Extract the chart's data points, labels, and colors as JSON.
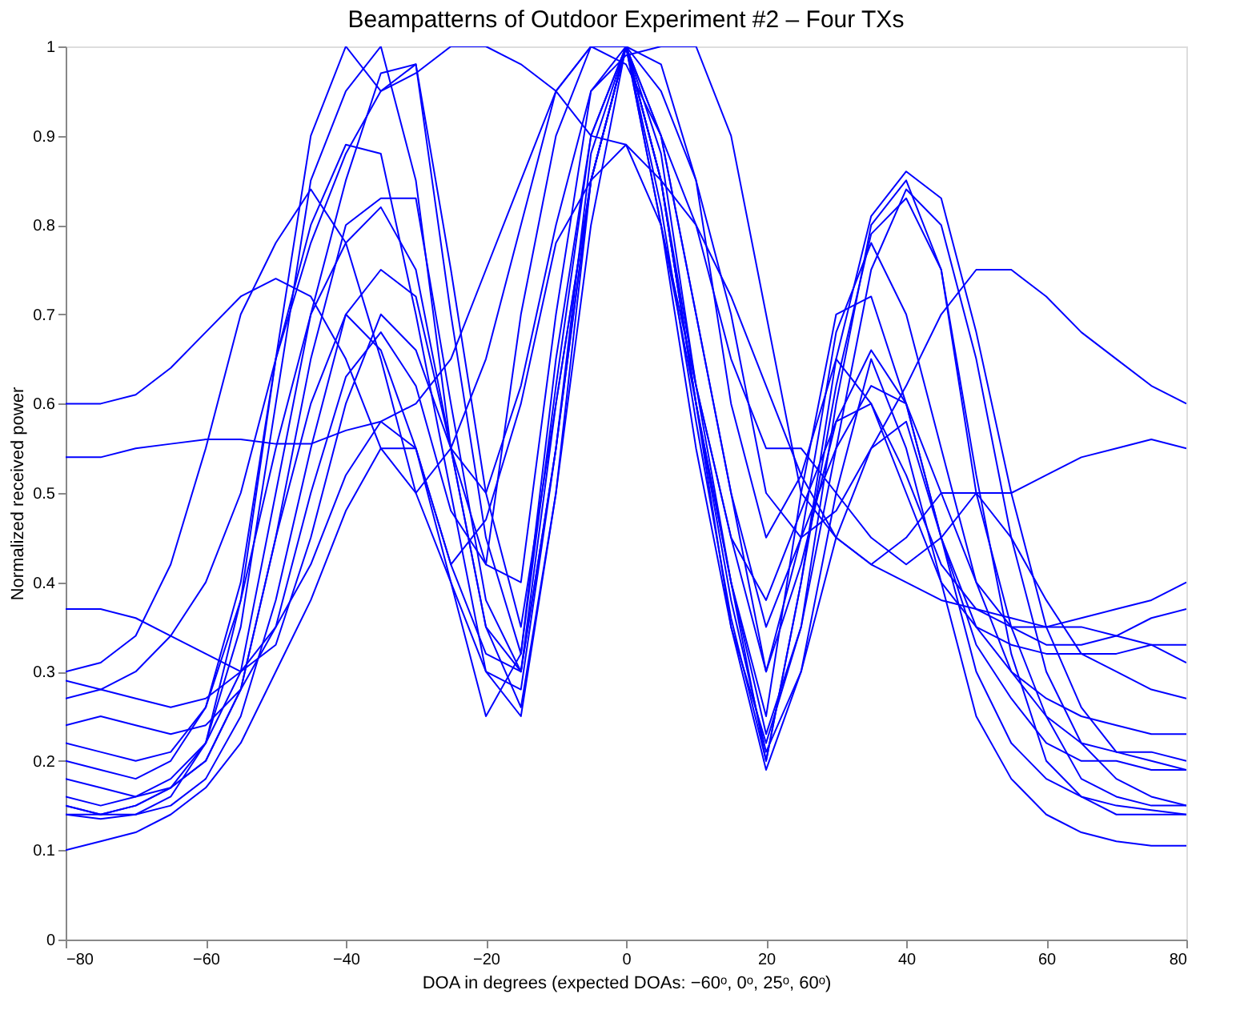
{
  "chart_data": {
    "type": "line",
    "title": "Beampatterns of Outdoor Experiment #2 – Four TXs",
    "xlabel": "DOA in degrees (expected DOAs: −60ᵒ, 0ᵒ, 25ᵒ, 60ᵒ)",
    "ylabel": "Normalized received power",
    "x": [
      -80,
      -75,
      -70,
      -65,
      -60,
      -55,
      -50,
      -45,
      -40,
      -35,
      -30,
      -25,
      -20,
      -15,
      -10,
      -5,
      0,
      5,
      10,
      15,
      20,
      25,
      30,
      35,
      40,
      45,
      50,
      55,
      60,
      65,
      70,
      75,
      80
    ],
    "xlim": [
      -80,
      80
    ],
    "xticks": [
      -80,
      -60,
      -40,
      -20,
      0,
      20,
      40,
      60,
      80
    ],
    "ylim": [
      0,
      1
    ],
    "yticks": [
      0,
      0.1,
      0.2,
      0.3,
      0.4,
      0.5,
      0.6,
      0.7,
      0.8,
      0.9,
      1
    ],
    "grid": false,
    "legend": false,
    "series": [
      {
        "color": "#0000ff",
        "values": [
          0.15,
          0.14,
          0.15,
          0.17,
          0.22,
          0.35,
          0.6,
          0.85,
          0.95,
          1.0,
          0.85,
          0.55,
          0.35,
          0.3,
          0.6,
          0.85,
          1.0,
          0.8,
          0.55,
          0.35,
          0.22,
          0.35,
          0.6,
          0.8,
          0.85,
          0.75,
          0.5,
          0.35,
          0.25,
          0.18,
          0.16,
          0.15,
          0.15
        ]
      },
      {
        "color": "#0000ff",
        "values": [
          0.6,
          0.6,
          0.61,
          0.64,
          0.68,
          0.72,
          0.74,
          0.72,
          0.65,
          0.55,
          0.5,
          0.55,
          0.65,
          0.8,
          0.95,
          1.0,
          1.0,
          0.95,
          0.85,
          0.7,
          0.5,
          0.45,
          0.48,
          0.55,
          0.62,
          0.7,
          0.75,
          0.75,
          0.72,
          0.68,
          0.65,
          0.62,
          0.6
        ]
      },
      {
        "color": "#0000ff",
        "values": [
          0.54,
          0.54,
          0.55,
          0.555,
          0.56,
          0.56,
          0.555,
          0.555,
          0.57,
          0.58,
          0.6,
          0.65,
          0.75,
          0.85,
          0.95,
          1.0,
          0.98,
          0.9,
          0.8,
          0.65,
          0.55,
          0.55,
          0.5,
          0.45,
          0.42,
          0.45,
          0.5,
          0.5,
          0.52,
          0.54,
          0.55,
          0.56,
          0.55
        ]
      },
      {
        "color": "#0000ff",
        "values": [
          0.37,
          0.37,
          0.36,
          0.34,
          0.32,
          0.3,
          0.33,
          0.45,
          0.6,
          0.7,
          0.66,
          0.55,
          0.42,
          0.4,
          0.7,
          0.95,
          1.0,
          0.9,
          0.7,
          0.5,
          0.35,
          0.45,
          0.55,
          0.62,
          0.6,
          0.5,
          0.4,
          0.35,
          0.33,
          0.33,
          0.34,
          0.36,
          0.37
        ]
      },
      {
        "color": "#0000ff",
        "values": [
          0.1,
          0.11,
          0.12,
          0.14,
          0.17,
          0.22,
          0.3,
          0.38,
          0.48,
          0.55,
          0.55,
          0.4,
          0.25,
          0.32,
          0.65,
          0.9,
          1.0,
          0.85,
          0.6,
          0.35,
          0.19,
          0.3,
          0.5,
          0.65,
          0.55,
          0.4,
          0.25,
          0.18,
          0.14,
          0.12,
          0.11,
          0.105,
          0.105
        ]
      },
      {
        "color": "#0000ff",
        "values": [
          0.3,
          0.31,
          0.34,
          0.42,
          0.55,
          0.7,
          0.78,
          0.84,
          0.78,
          0.65,
          0.5,
          0.4,
          0.3,
          0.28,
          0.55,
          0.85,
          1.0,
          0.9,
          0.7,
          0.5,
          0.3,
          0.45,
          0.68,
          0.78,
          0.7,
          0.55,
          0.4,
          0.3,
          0.25,
          0.22,
          0.21,
          0.21,
          0.2
        ]
      },
      {
        "color": "#0000ff",
        "values": [
          0.2,
          0.19,
          0.18,
          0.2,
          0.26,
          0.4,
          0.65,
          0.8,
          0.89,
          0.88,
          0.7,
          0.5,
          0.3,
          0.25,
          0.5,
          0.8,
          1.0,
          0.85,
          0.6,
          0.4,
          0.25,
          0.5,
          0.7,
          0.72,
          0.6,
          0.45,
          0.35,
          0.3,
          0.27,
          0.25,
          0.24,
          0.23,
          0.23
        ]
      },
      {
        "color": "#0000ff",
        "values": [
          0.16,
          0.15,
          0.16,
          0.18,
          0.22,
          0.3,
          0.5,
          0.7,
          0.85,
          0.97,
          0.98,
          0.75,
          0.5,
          0.35,
          0.6,
          0.85,
          1.0,
          0.8,
          0.6,
          0.4,
          0.23,
          0.35,
          0.55,
          0.75,
          0.84,
          0.8,
          0.65,
          0.45,
          0.3,
          0.22,
          0.18,
          0.16,
          0.15
        ]
      },
      {
        "color": "#0000ff",
        "values": [
          0.24,
          0.25,
          0.24,
          0.23,
          0.24,
          0.28,
          0.35,
          0.5,
          0.63,
          0.68,
          0.62,
          0.48,
          0.42,
          0.7,
          0.9,
          1.0,
          1.0,
          0.98,
          0.85,
          0.6,
          0.45,
          0.52,
          0.65,
          0.6,
          0.5,
          0.4,
          0.35,
          0.33,
          0.32,
          0.32,
          0.32,
          0.33,
          0.33
        ]
      },
      {
        "color": "#0000ff",
        "values": [
          0.18,
          0.17,
          0.16,
          0.17,
          0.2,
          0.28,
          0.45,
          0.65,
          0.8,
          0.83,
          0.83,
          0.6,
          0.38,
          0.3,
          0.55,
          0.85,
          1.0,
          0.85,
          0.6,
          0.38,
          0.21,
          0.3,
          0.45,
          0.55,
          0.58,
          0.45,
          0.3,
          0.22,
          0.18,
          0.16,
          0.15,
          0.145,
          0.14
        ]
      },
      {
        "color": "#0000ff",
        "values": [
          0.14,
          0.14,
          0.15,
          0.17,
          0.2,
          0.28,
          0.45,
          0.6,
          0.7,
          0.75,
          0.72,
          0.55,
          0.5,
          0.62,
          0.8,
          0.95,
          0.99,
          1.0,
          1.0,
          0.9,
          0.7,
          0.5,
          0.45,
          0.42,
          0.45,
          0.5,
          0.5,
          0.45,
          0.38,
          0.32,
          0.3,
          0.28,
          0.27
        ]
      },
      {
        "color": "#0000ff",
        "values": [
          0.22,
          0.21,
          0.2,
          0.21,
          0.26,
          0.38,
          0.55,
          0.7,
          0.78,
          0.82,
          0.75,
          0.55,
          0.35,
          0.26,
          0.5,
          0.85,
          1.0,
          0.88,
          0.62,
          0.4,
          0.2,
          0.4,
          0.65,
          0.81,
          0.86,
          0.83,
          0.68,
          0.5,
          0.35,
          0.26,
          0.21,
          0.2,
          0.19
        ]
      },
      {
        "color": "#0000ff",
        "values": [
          0.27,
          0.28,
          0.3,
          0.34,
          0.4,
          0.5,
          0.65,
          0.78,
          0.88,
          0.95,
          0.97,
          1.0,
          1.0,
          0.98,
          0.95,
          0.9,
          0.89,
          0.85,
          0.8,
          0.72,
          0.62,
          0.52,
          0.45,
          0.42,
          0.4,
          0.38,
          0.37,
          0.36,
          0.35,
          0.35,
          0.34,
          0.33,
          0.31
        ]
      },
      {
        "color": "#0000ff",
        "values": [
          0.15,
          0.14,
          0.14,
          0.15,
          0.18,
          0.25,
          0.38,
          0.55,
          0.7,
          0.66,
          0.55,
          0.42,
          0.47,
          0.6,
          0.78,
          0.85,
          0.89,
          0.8,
          0.62,
          0.45,
          0.3,
          0.42,
          0.58,
          0.66,
          0.6,
          0.45,
          0.33,
          0.27,
          0.22,
          0.2,
          0.2,
          0.19,
          0.19
        ]
      },
      {
        "color": "#0000ff",
        "values": [
          0.29,
          0.28,
          0.27,
          0.26,
          0.27,
          0.3,
          0.35,
          0.42,
          0.52,
          0.58,
          0.55,
          0.42,
          0.32,
          0.3,
          0.55,
          0.88,
          1.0,
          0.85,
          0.62,
          0.45,
          0.38,
          0.48,
          0.58,
          0.6,
          0.52,
          0.42,
          0.37,
          0.35,
          0.35,
          0.36,
          0.37,
          0.38,
          0.4
        ]
      },
      {
        "color": "#0000ff",
        "values": [
          0.14,
          0.135,
          0.14,
          0.16,
          0.22,
          0.38,
          0.65,
          0.9,
          1.0,
          0.95,
          0.98,
          0.7,
          0.45,
          0.32,
          0.62,
          0.9,
          1.0,
          0.82,
          0.58,
          0.36,
          0.2,
          0.4,
          0.62,
          0.79,
          0.83,
          0.75,
          0.52,
          0.32,
          0.2,
          0.16,
          0.14,
          0.14,
          0.14
        ]
      }
    ]
  }
}
